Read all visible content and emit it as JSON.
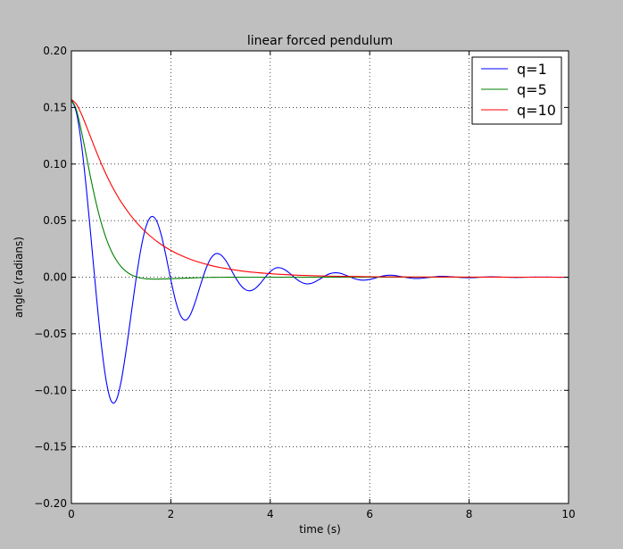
{
  "chart_data": {
    "type": "line",
    "title": "linear forced pendulum",
    "xlabel": "time (s)",
    "ylabel": "angle (radians)",
    "xlim": [
      0,
      10
    ],
    "ylim": [
      -0.2,
      0.2
    ],
    "x_ticks": [
      0,
      2,
      4,
      6,
      8,
      10
    ],
    "x_tick_labels": [
      "0",
      "2",
      "4",
      "6",
      "8",
      "10"
    ],
    "y_ticks": [
      -0.2,
      -0.15,
      -0.1,
      -0.05,
      0.0,
      0.05,
      0.1,
      0.15,
      0.2
    ],
    "y_tick_labels": [
      "−0.20",
      "−0.15",
      "−0.10",
      "−0.05",
      "0.00",
      "0.05",
      "0.10",
      "0.15",
      "0.20"
    ],
    "grid": true,
    "legend_position": "top-right",
    "series": [
      {
        "name": "q=1",
        "color": "#0000ff",
        "x": [
          0,
          0.1,
          0.2,
          0.3,
          0.4,
          0.5,
          0.6,
          0.7,
          0.8,
          0.9,
          1.0,
          1.1,
          1.2,
          1.3,
          1.4,
          1.5,
          1.6,
          1.7,
          1.8,
          1.9,
          2.0,
          2.1,
          2.2,
          2.3,
          2.4,
          2.5,
          2.6,
          2.7,
          2.8,
          2.9,
          3.0,
          3.1,
          3.2,
          3.3,
          3.4,
          3.5,
          3.6,
          3.7,
          3.8,
          3.9,
          4.0,
          4.1,
          4.2,
          4.3,
          4.4,
          4.5,
          4.6,
          4.7,
          4.8,
          4.9,
          5.0,
          5.1,
          5.2,
          5.3,
          5.4,
          5.5,
          5.6,
          5.7,
          5.8,
          5.9,
          6.0,
          6.1,
          6.2,
          6.3,
          6.4,
          6.5,
          6.6,
          6.7,
          6.8,
          6.9,
          7.0,
          7.1,
          7.2,
          7.3,
          7.4,
          7.5,
          7.6,
          7.7,
          7.8,
          7.9,
          8.0,
          8.1,
          8.2,
          8.3,
          8.4,
          8.5,
          8.6,
          8.7,
          8.8,
          8.9,
          9.0,
          9.1,
          9.2,
          9.3,
          9.4,
          9.5,
          9.6,
          9.7,
          9.8,
          9.9,
          10.0
        ],
        "y": [
          0.157,
          0.1457,
          0.1182,
          0.0786,
          0.0321,
          -0.0156,
          -0.0588,
          -0.0916,
          -0.1094,
          -0.1089,
          -0.0922,
          -0.0649,
          -0.0333,
          -0.0018,
          0.0254,
          0.0446,
          0.0533,
          0.0509,
          0.0385,
          0.0193,
          -0.0024,
          -0.0216,
          -0.0343,
          -0.0379,
          -0.0325,
          -0.0207,
          -0.0065,
          0.0068,
          0.0163,
          0.0207,
          0.0199,
          0.015,
          0.0076,
          -0.0003,
          -0.0069,
          -0.011,
          -0.012,
          -0.0099,
          -0.0055,
          0.0,
          0.0049,
          0.0079,
          0.0083,
          0.0064,
          0.0031,
          -0.0007,
          -0.0039,
          -0.0057,
          -0.0057,
          -0.0041,
          -0.0016,
          0.0011,
          0.0031,
          0.0039,
          0.0035,
          0.0021,
          0.0004,
          -0.0014,
          -0.0024,
          -0.0026,
          -0.002,
          -0.0009,
          0.0004,
          0.0013,
          0.0017,
          0.0015,
          0.0008,
          0.0,
          -0.0007,
          -0.0011,
          -0.0011,
          -0.0007,
          -0.0002,
          0.0003,
          0.0007,
          0.0007,
          0.0005,
          0.0002,
          -0.0002,
          -0.0004,
          -0.0005,
          -0.0004,
          -0.0001,
          0.0001,
          0.0003,
          0.0003,
          0.0002,
          0.0,
          -0.0001,
          -0.0002,
          -0.0002,
          -0.0001,
          0.0,
          0.0001,
          0.0001,
          0.0001,
          0.0001,
          0.0,
          -0.0001,
          -0.0001,
          -0.0001
        ]
      },
      {
        "name": "q=5",
        "color": "#008000",
        "x": [
          0,
          0.1,
          0.2,
          0.3,
          0.4,
          0.5,
          0.6,
          0.7,
          0.8,
          0.9,
          1.0,
          1.1,
          1.2,
          1.3,
          1.4,
          1.5,
          1.6,
          1.7,
          1.8,
          1.9,
          2.0,
          2.2,
          2.4,
          2.6,
          2.8,
          3.0,
          3.5,
          4.0,
          5.0,
          6.0,
          7.0,
          8.0,
          9.0,
          10.0
        ],
        "y": [
          0.157,
          0.1479,
          0.1293,
          0.1073,
          0.0851,
          0.0651,
          0.0481,
          0.0342,
          0.0234,
          0.0153,
          0.0093,
          0.0051,
          0.0022,
          0.0004,
          -0.0008,
          -0.0014,
          -0.0016,
          -0.0017,
          -0.0016,
          -0.0015,
          -0.0013,
          -0.001,
          -0.0007,
          -0.0004,
          -0.0002,
          -0.0001,
          0.0,
          0.0,
          0.0,
          0.0,
          0.0,
          0.0,
          0.0,
          0.0
        ]
      },
      {
        "name": "q=10",
        "color": "#ff0000",
        "x": [
          0,
          0.1,
          0.2,
          0.3,
          0.4,
          0.5,
          0.6,
          0.7,
          0.8,
          0.9,
          1.0,
          1.2,
          1.4,
          1.6,
          1.8,
          2.0,
          2.2,
          2.4,
          2.6,
          2.8,
          3.0,
          3.5,
          4.0,
          4.5,
          5.0,
          5.5,
          6.0,
          7.0,
          8.0,
          9.0,
          10.0
        ],
        "y": [
          0.157,
          0.1529,
          0.1443,
          0.1336,
          0.1222,
          0.1111,
          0.1005,
          0.0907,
          0.0818,
          0.0738,
          0.0665,
          0.0541,
          0.044,
          0.0358,
          0.0291,
          0.0237,
          0.0193,
          0.0157,
          0.0128,
          0.0104,
          0.0085,
          0.0051,
          0.0031,
          0.0018,
          0.0011,
          0.0007,
          0.0004,
          0.0002,
          0.0001,
          0.0,
          0.0
        ]
      }
    ]
  }
}
